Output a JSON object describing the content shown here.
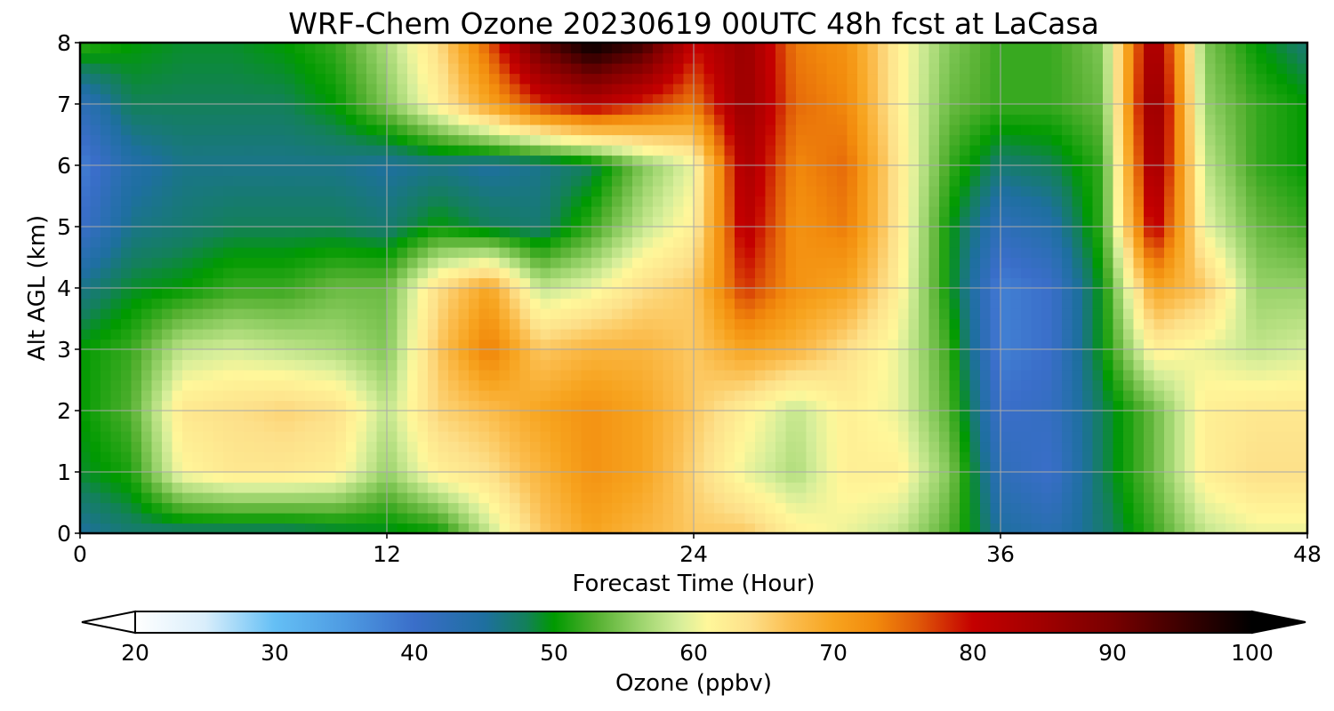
{
  "chart_data": {
    "type": "heatmap",
    "title": "WRF-Chem Ozone  20230619 00UTC 48h fcst at LaCasa",
    "xlabel": "Forecast Time (Hour)",
    "ylabel": "Alt AGL (km)",
    "xlim": [
      0,
      48
    ],
    "ylim": [
      0,
      8
    ],
    "xticks": [
      0,
      12,
      24,
      36,
      48
    ],
    "yticks": [
      0,
      1,
      2,
      3,
      4,
      5,
      6,
      7,
      8
    ],
    "grid": true,
    "x": [
      0,
      2,
      4,
      6,
      8,
      10,
      12,
      14,
      16,
      18,
      20,
      22,
      24,
      26,
      28,
      30,
      32,
      34,
      36,
      38,
      40,
      42,
      44,
      46,
      48
    ],
    "y": [
      0,
      1,
      2,
      3,
      4,
      5,
      6,
      7,
      8
    ],
    "values": [
      [
        45,
        47,
        47,
        47,
        47,
        48,
        49,
        50,
        58,
        66,
        70,
        68,
        66,
        66,
        62,
        60,
        58,
        53,
        45,
        43,
        47,
        52,
        58,
        60,
        60
      ],
      [
        49,
        51,
        61,
        63,
        63,
        62,
        56,
        62,
        64,
        68,
        72,
        70,
        65,
        60,
        57,
        62,
        62,
        55,
        42,
        40,
        48,
        54,
        62,
        64,
        64
      ],
      [
        50,
        53,
        63,
        64,
        65,
        64,
        58,
        65,
        67,
        70,
        72,
        70,
        66,
        62,
        58,
        62,
        60,
        53,
        40,
        41,
        48,
        54,
        62,
        63,
        63
      ],
      [
        50,
        52,
        58,
        59,
        58,
        57,
        55,
        66,
        74,
        66,
        68,
        68,
        66,
        70,
        68,
        64,
        60,
        52,
        38,
        40,
        50,
        62,
        60,
        58,
        59
      ],
      [
        46,
        49,
        50,
        52,
        52,
        54,
        54,
        64,
        70,
        58,
        60,
        64,
        66,
        78,
        72,
        70,
        62,
        50,
        38,
        40,
        50,
        70,
        66,
        56,
        56
      ],
      [
        40,
        46,
        47,
        48,
        48,
        48,
        47,
        50,
        48,
        47,
        52,
        58,
        62,
        82,
        72,
        74,
        63,
        50,
        42,
        44,
        52,
        82,
        60,
        54,
        52
      ],
      [
        38,
        44,
        46,
        46,
        46,
        46,
        45,
        46,
        45,
        46,
        48,
        55,
        60,
        84,
        73,
        75,
        63,
        52,
        47,
        48,
        52,
        86,
        58,
        52,
        50
      ],
      [
        42,
        48,
        48,
        48,
        48,
        50,
        55,
        62,
        70,
        78,
        82,
        78,
        74,
        86,
        75,
        73,
        62,
        54,
        52,
        52,
        54,
        88,
        56,
        52,
        50
      ],
      [
        52,
        50,
        49,
        49,
        50,
        52,
        57,
        64,
        76,
        92,
        100,
        95,
        80,
        86,
        74,
        72,
        62,
        55,
        52,
        52,
        55,
        86,
        55,
        50,
        47
      ]
    ],
    "colorbar": {
      "label": "Ozone  (ppbv)",
      "range": [
        20,
        100
      ],
      "ticks": [
        20,
        30,
        40,
        50,
        60,
        70,
        80,
        90,
        100
      ],
      "extend": "both",
      "colormap": [
        [
          20,
          "#ffffff"
        ],
        [
          25,
          "#d9eefb"
        ],
        [
          30,
          "#64bff5"
        ],
        [
          35,
          "#4e9be2"
        ],
        [
          40,
          "#3a6ec9"
        ],
        [
          45,
          "#1e6fa0"
        ],
        [
          48,
          "#13805a"
        ],
        [
          50,
          "#009a00"
        ],
        [
          53,
          "#54b030"
        ],
        [
          56,
          "#98d26a"
        ],
        [
          59,
          "#d6ee9a"
        ],
        [
          61,
          "#fff79a"
        ],
        [
          64,
          "#fde08a"
        ],
        [
          67,
          "#fbbd4e"
        ],
        [
          70,
          "#f7a41f"
        ],
        [
          73,
          "#f28a0c"
        ],
        [
          76,
          "#e05a08"
        ],
        [
          80,
          "#c40000"
        ],
        [
          85,
          "#a00000"
        ],
        [
          90,
          "#780000"
        ],
        [
          95,
          "#3c0000"
        ],
        [
          100,
          "#000000"
        ]
      ]
    }
  }
}
